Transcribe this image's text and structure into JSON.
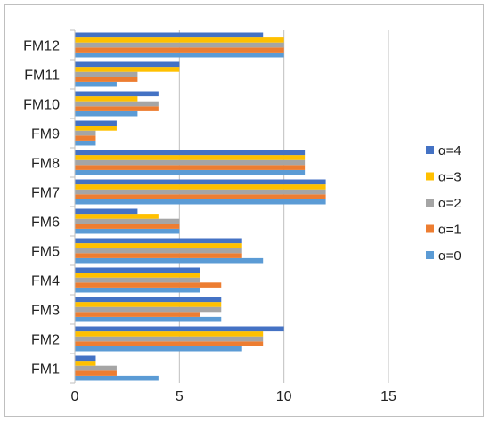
{
  "chart_data": {
    "type": "bar",
    "orientation": "horizontal",
    "title": "",
    "xlabel": "",
    "ylabel": "",
    "xlim": [
      0,
      15
    ],
    "xticks": [
      0,
      5,
      10,
      15
    ],
    "grid": true,
    "legend_position": "right",
    "categories": [
      "FM1",
      "FM2",
      "FM3",
      "FM4",
      "FM5",
      "FM6",
      "FM7",
      "FM8",
      "FM9",
      "FM10",
      "FM11",
      "FM12"
    ],
    "series": [
      {
        "name": "α=0",
        "color": "#5b9bd5",
        "values": [
          4,
          8,
          7,
          6,
          9,
          5,
          12,
          11,
          1,
          3,
          2,
          10
        ]
      },
      {
        "name": "α=1",
        "color": "#ed7d31",
        "values": [
          2,
          9,
          6,
          7,
          8,
          5,
          12,
          11,
          1,
          4,
          3,
          10
        ]
      },
      {
        "name": "α=2",
        "color": "#a5a5a5",
        "values": [
          2,
          9,
          7,
          6,
          8,
          5,
          12,
          11,
          1,
          4,
          3,
          10
        ]
      },
      {
        "name": "α=3",
        "color": "#ffc000",
        "values": [
          1,
          9,
          7,
          6,
          8,
          4,
          12,
          11,
          2,
          3,
          5,
          10
        ]
      },
      {
        "name": "α=4",
        "color": "#4472c4",
        "values": [
          1,
          10,
          7,
          6,
          8,
          3,
          12,
          11,
          2,
          4,
          5,
          9
        ]
      }
    ]
  }
}
